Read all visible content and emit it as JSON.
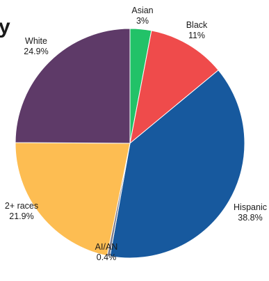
{
  "chart_data": {
    "type": "pie",
    "title_fragment": "y",
    "start_angle_deg": 0,
    "direction": "clockwise",
    "slices": [
      {
        "name": "Asian",
        "label": "Asian",
        "value": 3,
        "value_label": "3%",
        "color": "#22c268"
      },
      {
        "name": "Black",
        "label": "Black",
        "value": 11,
        "value_label": "11%",
        "color": "#ef4b4b"
      },
      {
        "name": "Hispanic",
        "label": "Hispanic",
        "value": 38.8,
        "value_label": "38.8%",
        "color": "#17599e"
      },
      {
        "name": "AI/AN",
        "label": "AI/AN",
        "value": 0.4,
        "value_label": "0.4%",
        "color": "#7b7b8c"
      },
      {
        "name": "2+ races",
        "label": "2+ races",
        "value": 21.9,
        "value_label": "21.9%",
        "color": "#fdbd52"
      },
      {
        "name": "White",
        "label": "White",
        "value": 24.9,
        "value_label": "24.9%",
        "color": "#5e3a68"
      }
    ]
  }
}
